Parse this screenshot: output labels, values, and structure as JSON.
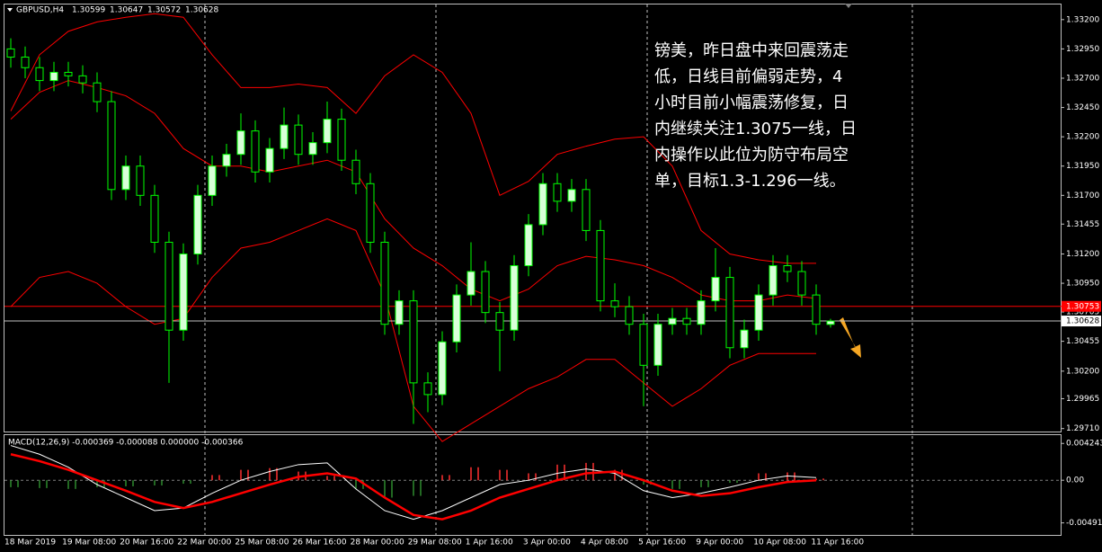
{
  "chart_data": {
    "type": "candlestick",
    "title": "GBPUSD,H4",
    "header_ohlc": [
      1.30599,
      1.30647,
      1.30572,
      1.30628
    ],
    "open": [
      1.3295,
      1.3288,
      1.3279,
      1.3268,
      1.3275,
      1.3272,
      1.3266,
      1.325,
      1.3175,
      1.3195,
      1.317,
      1.313,
      1.3055,
      1.312,
      1.317,
      1.3195,
      1.3205,
      1.3225,
      1.319,
      1.321,
      1.323,
      1.3205,
      1.3215,
      1.3235,
      1.32,
      1.318,
      1.313,
      1.306,
      1.308,
      1.301,
      1.3,
      1.3045,
      1.3085,
      1.3105,
      1.307,
      1.3055,
      1.311,
      1.3145,
      1.318,
      1.3165,
      1.3175,
      1.314,
      1.308,
      1.3075,
      1.306,
      1.3025,
      1.306,
      1.3065,
      1.306,
      1.308,
      1.31,
      1.304,
      1.3055,
      1.3085,
      1.311,
      1.3105,
      1.3085,
      1.30599
    ],
    "high": [
      1.3304,
      1.3297,
      1.3288,
      1.3284,
      1.3284,
      1.3281,
      1.3275,
      1.3259,
      1.3204,
      1.3204,
      1.3179,
      1.3139,
      1.3129,
      1.3179,
      1.3204,
      1.3214,
      1.324,
      1.3234,
      1.3219,
      1.3245,
      1.3239,
      1.3224,
      1.325,
      1.3244,
      1.3209,
      1.3189,
      1.3139,
      1.3089,
      1.3089,
      1.3019,
      1.3054,
      1.3094,
      1.313,
      1.3114,
      1.3079,
      1.3119,
      1.3154,
      1.3189,
      1.3189,
      1.3184,
      1.3184,
      1.3149,
      1.3095,
      1.3084,
      1.3069,
      1.3069,
      1.3074,
      1.3074,
      1.3089,
      1.3125,
      1.3109,
      1.3064,
      1.3094,
      1.3119,
      1.3119,
      1.3114,
      1.3094,
      1.30647
    ],
    "low": [
      1.3279,
      1.327,
      1.3259,
      1.3259,
      1.3263,
      1.3257,
      1.3241,
      1.3166,
      1.3166,
      1.3161,
      1.3121,
      1.301,
      1.3046,
      1.3111,
      1.3161,
      1.3186,
      1.3196,
      1.3181,
      1.3181,
      1.3201,
      1.3196,
      1.3196,
      1.3206,
      1.3191,
      1.3171,
      1.3121,
      1.3051,
      1.3051,
      1.2975,
      1.2985,
      1.2991,
      1.3036,
      1.3076,
      1.3061,
      1.302,
      1.3046,
      1.3101,
      1.3136,
      1.3156,
      1.3156,
      1.3131,
      1.3071,
      1.3066,
      1.3051,
      1.299,
      1.3016,
      1.3051,
      1.3051,
      1.3051,
      1.3071,
      1.3031,
      1.3031,
      1.3046,
      1.3076,
      1.3096,
      1.3076,
      1.3051,
      1.30572
    ],
    "close": [
      1.3288,
      1.3279,
      1.3268,
      1.3275,
      1.3272,
      1.3266,
      1.325,
      1.3175,
      1.3195,
      1.317,
      1.313,
      1.3055,
      1.312,
      1.317,
      1.3195,
      1.3205,
      1.3225,
      1.319,
      1.321,
      1.323,
      1.3205,
      1.3215,
      1.3235,
      1.32,
      1.318,
      1.313,
      1.306,
      1.308,
      1.301,
      1.3,
      1.3045,
      1.3085,
      1.3105,
      1.307,
      1.3055,
      1.311,
      1.3145,
      1.318,
      1.3165,
      1.3175,
      1.314,
      1.308,
      1.3075,
      1.306,
      1.3025,
      1.306,
      1.3065,
      1.306,
      1.308,
      1.31,
      1.304,
      1.3055,
      1.3085,
      1.311,
      1.3105,
      1.3085,
      1.306,
      1.30628
    ],
    "bull_color": "#d8ffd8",
    "bear_color": "#000000",
    "candle_color": "#00ff00",
    "bands": [
      {
        "color": "#ff0000",
        "values": [
          1.3242,
          1.329,
          1.331,
          1.3318,
          1.3322,
          1.3325,
          1.3322,
          1.329,
          1.3262,
          1.3262,
          1.3265,
          1.3262,
          1.324,
          1.3272,
          1.329,
          1.3275,
          1.324,
          1.317,
          1.3182,
          1.3205,
          1.3212,
          1.3218,
          1.322,
          1.3195,
          1.314,
          1.312,
          1.3115,
          1.3112,
          1.3112
        ]
      },
      {
        "color": "#ff0000",
        "values": [
          1.3235,
          1.3258,
          1.3268,
          1.3262,
          1.3255,
          1.324,
          1.321,
          1.3195,
          1.3195,
          1.319,
          1.3195,
          1.32,
          1.319,
          1.315,
          1.3125,
          1.311,
          1.309,
          1.308,
          1.309,
          1.311,
          1.3118,
          1.3115,
          1.311,
          1.31,
          1.3085,
          1.308,
          1.308,
          1.3085,
          1.3082
        ]
      },
      {
        "color": "#ff0000",
        "values": [
          1.3075,
          1.31,
          1.3105,
          1.3095,
          1.3075,
          1.306,
          1.3065,
          1.31,
          1.3125,
          1.313,
          1.314,
          1.315,
          1.314,
          1.3085,
          1.299,
          1.296,
          1.2975,
          1.299,
          1.3005,
          1.3015,
          1.303,
          1.303,
          1.301,
          1.299,
          1.3005,
          1.3025,
          1.3035,
          1.3035,
          1.3035
        ]
      }
    ],
    "hlines": [
      {
        "value": 1.30753,
        "color": "#ff0000"
      },
      {
        "value": 1.30628,
        "color": "#c0c0c0"
      }
    ],
    "ylim": [
      1.29677,
      1.33329
    ],
    "yticks": [
      {
        "value": 1.332,
        "label": "1.33200"
      },
      {
        "value": 1.3295,
        "label": "1.32950"
      },
      {
        "value": 1.327,
        "label": "1.32700"
      },
      {
        "value": 1.3245,
        "label": "1.32450"
      },
      {
        "value": 1.322,
        "label": "1.32200"
      },
      {
        "value": 1.3195,
        "label": "1.31950"
      },
      {
        "value": 1.317,
        "label": "1.31700"
      },
      {
        "value": 1.31455,
        "label": "1.31455"
      },
      {
        "value": 1.312,
        "label": "1.31200"
      },
      {
        "value": 1.3095,
        "label": "1.30950"
      },
      {
        "value": 1.30705,
        "label": "1.30705"
      },
      {
        "value": 1.30455,
        "label": "1.30455"
      },
      {
        "value": 1.302,
        "label": "1.30200"
      },
      {
        "value": 1.29965,
        "label": "1.29965"
      },
      {
        "value": 1.2971,
        "label": "1.29710"
      }
    ],
    "categories": [
      "18 Mar 2019",
      "19 Mar 08:00",
      "20 Mar 16:00",
      "22 Mar 00:00",
      "25 Mar 08:00",
      "26 Mar 16:00",
      "28 Mar 00:00",
      "29 Mar 08:00",
      "1 Apr 16:00",
      "3 Apr 00:00",
      "4 Apr 08:00",
      "5 Apr 16:00",
      "9 Apr 00:00",
      "10 Apr 08:00",
      "11 Apr 16:00"
    ],
    "annotation": [
      "镑美，昨日盘中来回震荡走",
      "低，日线目前偏弱走势，4",
      "小时目前小幅震荡修复，日",
      "内继续关注1.3075一线，日",
      "内操作以此位为防守布局空",
      "单，目标1.3-1.296一线。"
    ],
    "macd": {
      "title": "MACD(12,26,9) -0.000369 -0.000088 0.000000 -0.000366",
      "ylim": [
        -0.0063,
        0.0052
      ],
      "yticks": [
        0.004243,
        {
          "value": 0,
          "label": "0.00"
        },
        -0.004912
      ],
      "hist": [
        -0.0008,
        -0.0009,
        -0.001,
        -0.0008,
        -0.0007,
        -0.0006,
        -0.0004,
        0.0006,
        0.0012,
        0.0014,
        0.001,
        0.0005,
        -0.001,
        -0.002,
        -0.0018,
        0.0006,
        0.0015,
        0.0012,
        0.0008,
        0.0018,
        0.002,
        0.0012,
        -0.0005,
        -0.001,
        -0.0008,
        -0.0003,
        0.0008,
        0.0009,
        0.0002
      ],
      "hist_colors": {
        "up": "#ff3030",
        "down": "#2e8b2e"
      },
      "macd_color": "#ffffff",
      "signal_color": "#ff0000",
      "macd_line": [
        0.004,
        0.003,
        0.0015,
        -0.0005,
        -0.002,
        -0.0035,
        -0.0032,
        -0.0015,
        0.0,
        0.001,
        0.0018,
        0.002,
        -0.001,
        -0.0035,
        -0.0045,
        -0.0035,
        -0.002,
        -0.0005,
        0.0,
        0.0008,
        0.0013,
        0.0008,
        -0.0012,
        -0.002,
        -0.0015,
        -0.0008,
        0.0,
        0.0005,
        0.0003
      ],
      "signal_line": [
        0.003,
        0.0022,
        0.0012,
        0.0,
        -0.0012,
        -0.0025,
        -0.0032,
        -0.0025,
        -0.0015,
        -0.0005,
        0.0004,
        0.0008,
        0.0002,
        -0.002,
        -0.004,
        -0.0045,
        -0.0035,
        -0.002,
        -0.001,
        0.0,
        0.0008,
        0.001,
        0.0,
        -0.0012,
        -0.0018,
        -0.0015,
        -0.0008,
        -0.0002,
        0.0
      ]
    }
  }
}
